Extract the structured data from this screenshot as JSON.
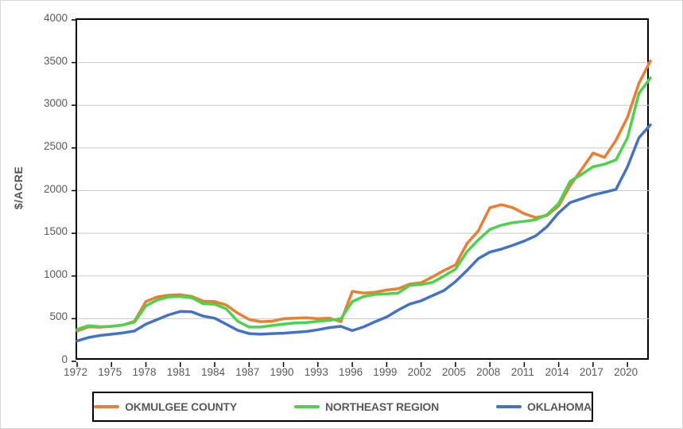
{
  "page": {
    "background": "#ffffff",
    "frame_border_color": "#d6d6d6"
  },
  "chart_data": {
    "type": "line",
    "title": "",
    "xlabel": "",
    "ylabel": "$/ACRE",
    "ylim": [
      0,
      4000
    ],
    "xlim": [
      1972,
      2022
    ],
    "grid": "horizontal",
    "gridline_color": "#c9c9c9",
    "axis_color": "#000000",
    "tick_text_color": "#595959",
    "legend_position": "bottom-center",
    "y_ticks": [
      0,
      500,
      1000,
      1500,
      2000,
      2500,
      3000,
      3500,
      4000
    ],
    "x_ticks": [
      1972,
      1975,
      1978,
      1981,
      1984,
      1987,
      1990,
      1993,
      1996,
      1999,
      2002,
      2005,
      2008,
      2011,
      2014,
      2017,
      2020
    ],
    "x": [
      1972,
      1973,
      1974,
      1975,
      1976,
      1977,
      1978,
      1979,
      1980,
      1981,
      1982,
      1983,
      1984,
      1985,
      1986,
      1987,
      1988,
      1989,
      1990,
      1991,
      1992,
      1993,
      1994,
      1995,
      1996,
      1997,
      1998,
      1999,
      2000,
      2001,
      2002,
      2003,
      2004,
      2005,
      2006,
      2007,
      2008,
      2009,
      2010,
      2011,
      2012,
      2013,
      2014,
      2015,
      2016,
      2017,
      2018,
      2019,
      2020,
      2021,
      2022
    ],
    "series": [
      {
        "name": "OKMULGEE COUNTY",
        "color": "#ED7D31",
        "values": [
          355,
          405,
          400,
          410,
          425,
          470,
          700,
          755,
          775,
          780,
          760,
          705,
          700,
          660,
          565,
          490,
          465,
          470,
          500,
          505,
          510,
          500,
          505,
          465,
          820,
          800,
          810,
          835,
          850,
          905,
          920,
          990,
          1065,
          1130,
          1380,
          1530,
          1800,
          1835,
          1800,
          1730,
          1685,
          1710,
          1820,
          2060,
          2250,
          2440,
          2390,
          2590,
          2860,
          3260,
          3520
        ]
      },
      {
        "name": "NORTHEAST REGION",
        "color": "#4CD24C",
        "values": [
          375,
          418,
          406,
          410,
          427,
          460,
          650,
          720,
          755,
          760,
          745,
          675,
          670,
          615,
          470,
          402,
          402,
          420,
          435,
          450,
          455,
          470,
          480,
          500,
          700,
          760,
          785,
          790,
          800,
          890,
          900,
          925,
          1000,
          1080,
          1285,
          1425,
          1545,
          1595,
          1625,
          1640,
          1660,
          1720,
          1850,
          2110,
          2190,
          2280,
          2310,
          2360,
          2620,
          3140,
          3320
        ]
      },
      {
        "name": "OKLAHOMA",
        "color": "#4472C4",
        "values": [
          240,
          280,
          303,
          318,
          334,
          355,
          435,
          490,
          545,
          585,
          580,
          530,
          505,
          435,
          365,
          325,
          318,
          325,
          330,
          340,
          350,
          370,
          395,
          410,
          360,
          405,
          465,
          520,
          600,
          670,
          710,
          770,
          830,
          935,
          1065,
          1205,
          1280,
          1315,
          1360,
          1410,
          1470,
          1580,
          1740,
          1860,
          1905,
          1950,
          1980,
          2015,
          2280,
          2620,
          2770
        ]
      }
    ]
  }
}
